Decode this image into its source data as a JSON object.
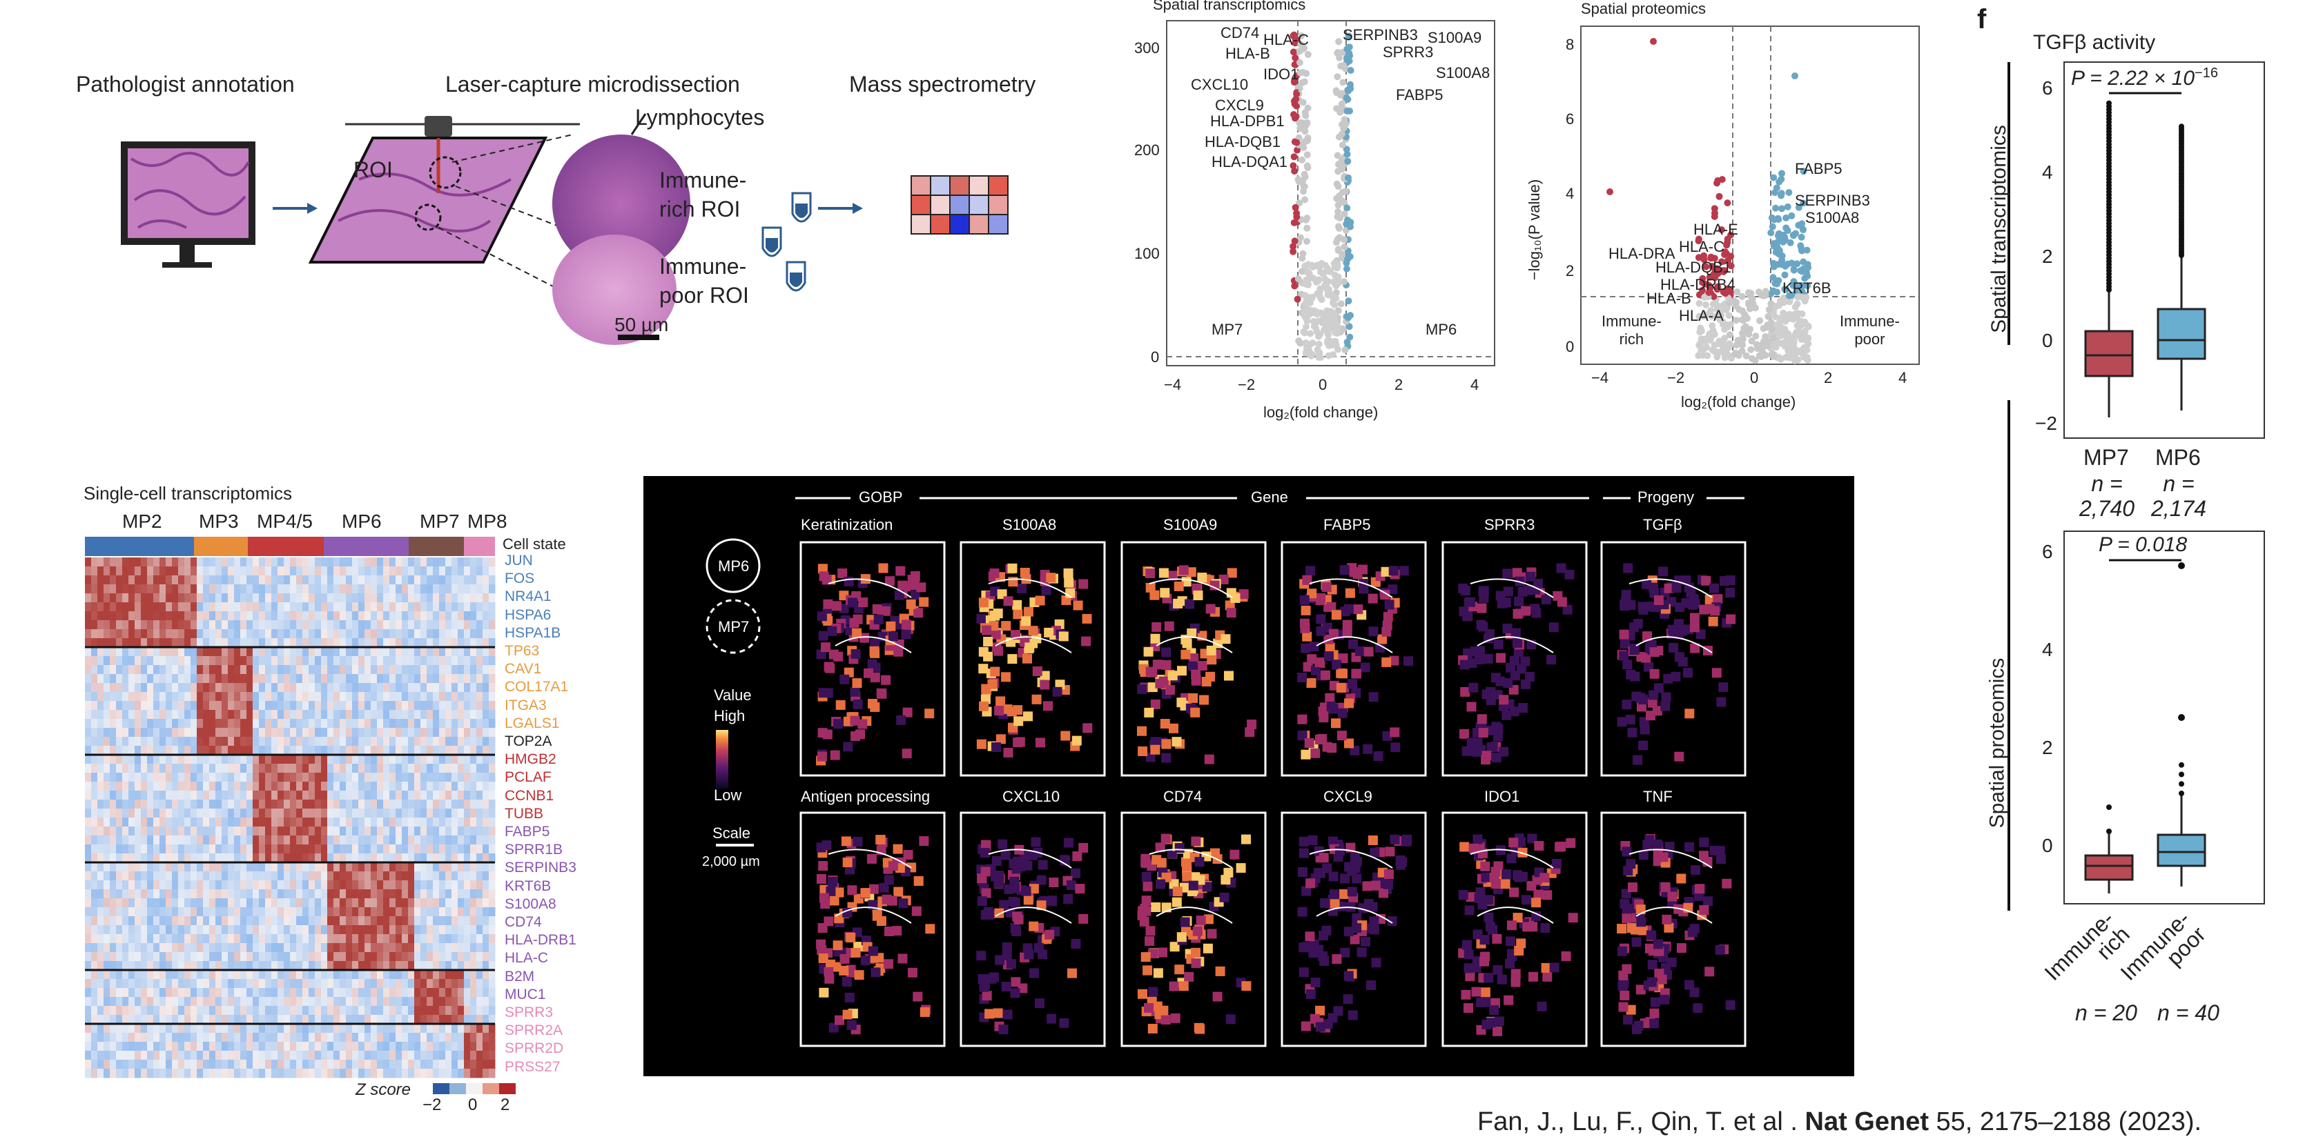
{
  "workflow": {
    "steps": [
      "Pathologist annotation",
      "Laser-capture microdissection",
      "Mass spectrometry"
    ],
    "labels": {
      "roi": "ROI",
      "lymphocytes": "Lymphocytes",
      "immune_rich": "Immune-\nrich ROI",
      "immune_poor": "Immune-\npoor ROI",
      "scale": "50 µm"
    }
  },
  "volcano_st": {
    "title": "Spatial transcriptomics",
    "xlabel": "log₂(fold change)",
    "left_group": "MP7",
    "right_group": "MP6",
    "genes_left": [
      "CD74",
      "HLA-C",
      "HLA-B",
      "IDO1",
      "CXCL10",
      "CXCL9",
      "HLA-DPB1",
      "HLA-DQB1",
      "HLA-DQA1"
    ],
    "genes_right": [
      "SERPINB3",
      "S100A9",
      "SPRR3",
      "S100A8",
      "FABP5"
    ],
    "xticks": [
      "−4",
      "−2",
      "0",
      "2",
      "4"
    ],
    "yticks": [
      "0",
      "100",
      "200",
      "300"
    ]
  },
  "volcano_sp": {
    "title": "Spatial proteomics",
    "xlabel": "log₂(fold change)",
    "ylabel": "−log₁₀(P value)",
    "left_group": "Immune-\nrich",
    "right_group": "Immune-\npoor",
    "genes_left": [
      "HLA-E",
      "HLA-C",
      "HLA-DRA",
      "HLA-DQB1",
      "HLA-DRB4",
      "HLA-B",
      "HLA-A"
    ],
    "genes_right": [
      "FABP5",
      "SERPINB3",
      "S100A8",
      "KRT6B"
    ],
    "xticks": [
      "−4",
      "−2",
      "0",
      "2",
      "4"
    ],
    "yticks": [
      "0",
      "2",
      "4",
      "6",
      "8"
    ]
  },
  "boxplots": {
    "panel_letter": "f",
    "title": "TGFβ activity",
    "top": {
      "ylabel": "Spatial transcriptomics",
      "pvalue": "P = 2.22 × 10",
      "pexp": "−16",
      "groups": [
        "MP7",
        "MP6"
      ],
      "ns": [
        "n =\n2,740",
        "n =\n2,174"
      ],
      "yticks": [
        "−2",
        "0",
        "2",
        "4",
        "6"
      ]
    },
    "bottom": {
      "ylabel": "Spatial proteomics",
      "pvalue": "P = 0.018",
      "groups": [
        "Immune-\nrich",
        "Immune-\npoor"
      ],
      "ns": [
        "n = 20",
        "n = 40"
      ],
      "yticks": [
        "0",
        "2",
        "4",
        "6"
      ]
    }
  },
  "heatmap": {
    "title": "Single-cell transcriptomics",
    "states": [
      "MP2",
      "MP3",
      "MP4/5",
      "MP6",
      "MP7",
      "MP8"
    ],
    "state_colors": [
      "#3f73b3",
      "#e88e3a",
      "#c23a3a",
      "#8d5bb3",
      "#7b5147",
      "#e389b8"
    ],
    "cell_state_label": "Cell state",
    "genes": [
      {
        "name": "JUN",
        "color": "#4a7fb7"
      },
      {
        "name": "FOS",
        "color": "#4a7fb7"
      },
      {
        "name": "NR4A1",
        "color": "#4a7fb7"
      },
      {
        "name": "HSPA6",
        "color": "#4a7fb7"
      },
      {
        "name": "HSPA1B",
        "color": "#4a7fb7"
      },
      {
        "name": "TP63",
        "color": "#e69a3c"
      },
      {
        "name": "CAV1",
        "color": "#e69a3c"
      },
      {
        "name": "COL17A1",
        "color": "#e69a3c"
      },
      {
        "name": "ITGA3",
        "color": "#e69a3c"
      },
      {
        "name": "LGALS1",
        "color": "#e69a3c"
      },
      {
        "name": "TOP2A",
        "color": "#222222"
      },
      {
        "name": "HMGB2",
        "color": "#c03030"
      },
      {
        "name": "PCLAF",
        "color": "#c03030"
      },
      {
        "name": "CCNB1",
        "color": "#c03030"
      },
      {
        "name": "TUBB",
        "color": "#c03030"
      },
      {
        "name": "FABP5",
        "color": "#8a55b0"
      },
      {
        "name": "SPRR1B",
        "color": "#8a55b0"
      },
      {
        "name": "SERPINB3",
        "color": "#8a55b0"
      },
      {
        "name": "KRT6B",
        "color": "#8a55b0"
      },
      {
        "name": "S100A8",
        "color": "#8a55b0"
      },
      {
        "name": "CD74",
        "color": "#8a55b0"
      },
      {
        "name": "HLA-DRB1",
        "color": "#8a55b0"
      },
      {
        "name": "HLA-C",
        "color": "#8a55b0"
      },
      {
        "name": "B2M",
        "color": "#8a55b0"
      },
      {
        "name": "MUC1",
        "color": "#8a55b0"
      },
      {
        "name": "SPRR3",
        "color": "#e48bb8"
      },
      {
        "name": "SPRR2A",
        "color": "#e48bb8"
      },
      {
        "name": "SPRR2D",
        "color": "#e48bb8"
      },
      {
        "name": "PRSS27",
        "color": "#e48bb8"
      }
    ],
    "zscore_label": "Z score",
    "zticks": [
      "−2",
      "0",
      "2"
    ]
  },
  "spatial": {
    "sections": [
      "GOBP",
      "Gene",
      "Progeny"
    ],
    "legend": {
      "mp6": "MP6",
      "mp7": "MP7",
      "value": "Value",
      "high": "High",
      "low": "Low",
      "scale": "Scale",
      "scale_value": "2,000 µm"
    },
    "row1": [
      "Keratinization",
      "S100A8",
      "S100A9",
      "FABP5",
      "SPRR3",
      "TGFβ"
    ],
    "row2": [
      "Antigen processing",
      "CXCL10",
      "CD74",
      "CXCL9",
      "IDO1",
      "TNF"
    ]
  },
  "citation": {
    "authors": "Fan, J., Lu, F., Qin, T. et al . ",
    "journal": "Nat Genet",
    "rest": " 55, 2175–2188 (2023)."
  }
}
